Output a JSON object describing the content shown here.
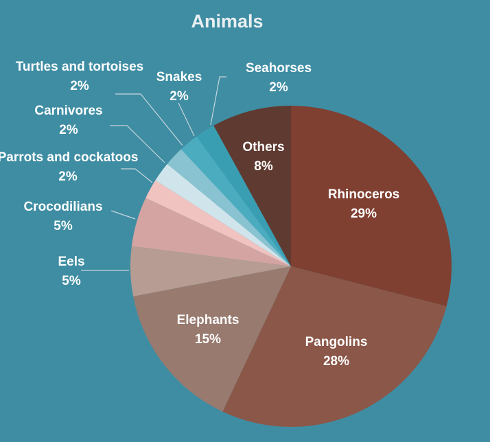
{
  "chart_data": {
    "type": "pie",
    "title": "Animals",
    "slices": [
      {
        "label": "Rhinoceros",
        "value": 29,
        "value_label": "29%",
        "color": "#7f3f31"
      },
      {
        "label": "Pangolins",
        "value": 28,
        "value_label": "28%",
        "color": "#8b5748"
      },
      {
        "label": "Elephants",
        "value": 15,
        "value_label": "15%",
        "color": "#987a6f"
      },
      {
        "label": "Eels",
        "value": 5,
        "value_label": "5%",
        "color": "#b69c92"
      },
      {
        "label": "Crocodilians",
        "value": 5,
        "value_label": "5%",
        "color": "#d4a4a2"
      },
      {
        "label": "Parrots and cockatoos",
        "value": 2,
        "value_label": "2%",
        "color": "#f0c3c0"
      },
      {
        "label": "Carnivores",
        "value": 2,
        "value_label": "2%",
        "color": "#d0e5eb"
      },
      {
        "label": "Turtles and tortoises",
        "value": 2,
        "value_label": "2%",
        "color": "#89c3d1"
      },
      {
        "label": "Snakes",
        "value": 2,
        "value_label": "2%",
        "color": "#4bacc0"
      },
      {
        "label": "Seahorses",
        "value": 2,
        "value_label": "2%",
        "color": "#3a9eb3"
      },
      {
        "label": "Others",
        "value": 8,
        "value_label": "8%",
        "color": "#5f3a30"
      }
    ]
  }
}
